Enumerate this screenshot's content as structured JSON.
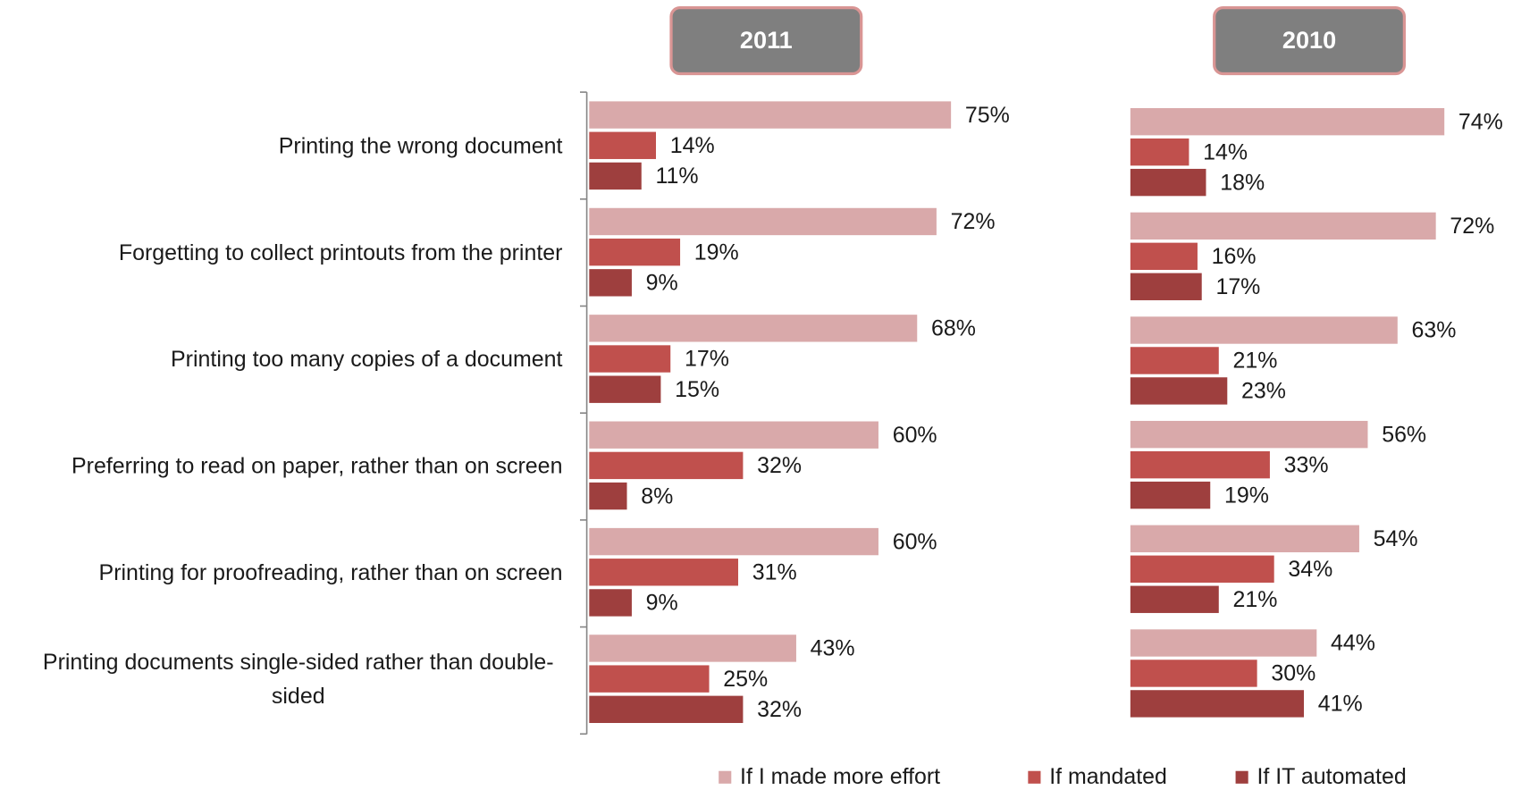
{
  "chart_data": [
    {
      "type": "bar",
      "orientation": "horizontal",
      "title": "2011",
      "categories": [
        "Printing the wrong document",
        "Forgetting to collect printouts from the printer",
        "Printing too many copies of a document",
        "Preferring to read on paper, rather than on screen",
        "Printing for proofreading, rather than on screen",
        "Printing documents single-sided rather than double-sided"
      ],
      "xlim": [
        0,
        80
      ],
      "series": [
        {
          "name": "If I made more effort",
          "color": "#d9a9aa",
          "values": [
            75,
            72,
            68,
            60,
            60,
            43
          ],
          "value_labels": [
            "75%",
            "72%",
            "68%",
            "60%",
            "60%",
            "43%"
          ]
        },
        {
          "name": "If mandated",
          "color": "#c0504d",
          "values": [
            14,
            19,
            17,
            32,
            31,
            25
          ],
          "value_labels": [
            "14%",
            "19%",
            "17%",
            "32%",
            "31%",
            "25%"
          ]
        },
        {
          "name": "If IT automated",
          "color": "#9e3f3e",
          "values": [
            11,
            9,
            15,
            8,
            9,
            32
          ],
          "value_labels": [
            "11%",
            "9%",
            "15%",
            "8%",
            "9%",
            "32%"
          ]
        }
      ]
    },
    {
      "type": "bar",
      "orientation": "horizontal",
      "title": "2010",
      "xlim": [
        0,
        90
      ],
      "series": [
        {
          "color": "#d9a9aa",
          "values": [
            74,
            72,
            63,
            56,
            54,
            44
          ],
          "value_labels": [
            "74%",
            "72%",
            "63%",
            "56%",
            "54%",
            "44%"
          ]
        },
        {
          "color": "#c0504d",
          "values": [
            14,
            16,
            21,
            33,
            34,
            30
          ],
          "value_labels": [
            "14%",
            "16%",
            "21%",
            "33%",
            "34%",
            "30%"
          ]
        },
        {
          "color": "#9e3f3e",
          "values": [
            18,
            17,
            23,
            19,
            21,
            41
          ],
          "value_labels": [
            "18%",
            "17%",
            "23%",
            "19%",
            "21%",
            "41%"
          ]
        }
      ]
    }
  ]
}
